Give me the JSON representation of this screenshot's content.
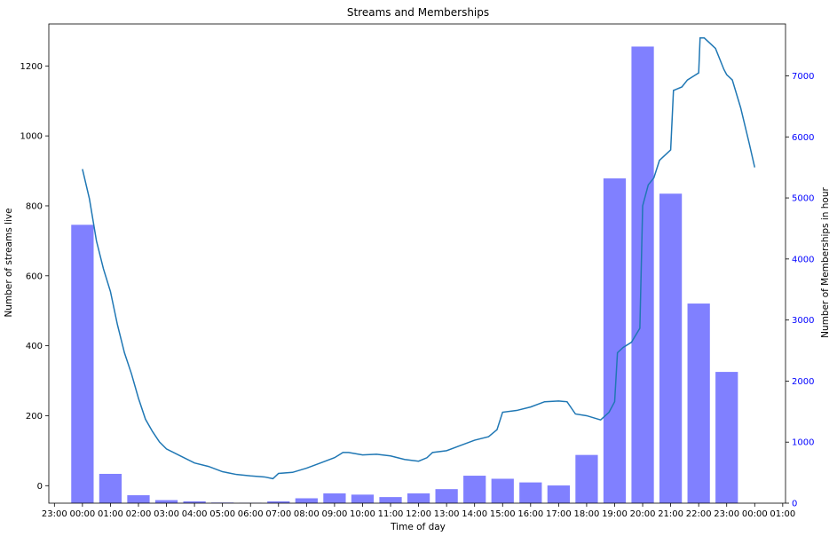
{
  "chart_data": {
    "type": "bar+line",
    "title": "Streams and Memberships",
    "xlabel": "Time of day",
    "ylabel_left": "Number of streams live",
    "ylabel_right": "Number of Memberships in hour",
    "x_tick_labels": [
      "23:00",
      "00:00",
      "01:00",
      "02:00",
      "03:00",
      "04:00",
      "05:00",
      "06:00",
      "07:00",
      "08:00",
      "09:00",
      "10:00",
      "11:00",
      "12:00",
      "13:00",
      "14:00",
      "15:00",
      "16:00",
      "17:00",
      "18:00",
      "19:00",
      "20:00",
      "21:00",
      "22:00",
      "23:00",
      "00:00",
      "01:00"
    ],
    "x_range_hours": [
      -1.2,
      25.1
    ],
    "y_left": {
      "range": [
        -50,
        1320
      ],
      "ticks": [
        0,
        200,
        400,
        600,
        800,
        1000,
        1200
      ]
    },
    "y_right": {
      "range": [
        0,
        7850
      ],
      "ticks": [
        0,
        1000,
        2000,
        3000,
        4000,
        5000,
        6000,
        7000
      ]
    },
    "grid": false,
    "colors": {
      "bars": "#8080ff",
      "line": "#1f77b4",
      "right_axis": "#0000ff"
    },
    "bars": {
      "name": "Memberships in hour",
      "x_hours": [
        0,
        1,
        2,
        3,
        4,
        5,
        6,
        7,
        8,
        9,
        10,
        11,
        12,
        13,
        14,
        15,
        16,
        17,
        18,
        19,
        20,
        21,
        22,
        23
      ],
      "values": [
        4560,
        480,
        130,
        50,
        30,
        10,
        5,
        30,
        80,
        160,
        140,
        100,
        160,
        230,
        450,
        400,
        340,
        290,
        790,
        5320,
        7480,
        5070,
        3270,
        2150
      ]
    },
    "line": {
      "name": "Streams live",
      "points": [
        [
          0,
          905
        ],
        [
          0.25,
          820
        ],
        [
          0.5,
          700
        ],
        [
          0.75,
          620
        ],
        [
          1,
          555
        ],
        [
          1.25,
          460
        ],
        [
          1.5,
          380
        ],
        [
          1.75,
          320
        ],
        [
          2,
          250
        ],
        [
          2.25,
          190
        ],
        [
          2.5,
          155
        ],
        [
          2.75,
          125
        ],
        [
          3,
          105
        ],
        [
          3.5,
          85
        ],
        [
          4,
          65
        ],
        [
          4.5,
          55
        ],
        [
          5,
          40
        ],
        [
          5.5,
          32
        ],
        [
          6,
          28
        ],
        [
          6.5,
          25
        ],
        [
          6.8,
          20
        ],
        [
          7,
          35
        ],
        [
          7.5,
          38
        ],
        [
          8,
          50
        ],
        [
          8.5,
          65
        ],
        [
          9,
          80
        ],
        [
          9.3,
          95
        ],
        [
          9.5,
          95
        ],
        [
          10,
          88
        ],
        [
          10.5,
          90
        ],
        [
          11,
          85
        ],
        [
          11.5,
          75
        ],
        [
          12,
          70
        ],
        [
          12.3,
          80
        ],
        [
          12.5,
          95
        ],
        [
          13,
          100
        ],
        [
          13.5,
          115
        ],
        [
          14,
          130
        ],
        [
          14.5,
          140
        ],
        [
          14.8,
          160
        ],
        [
          15,
          210
        ],
        [
          15.5,
          215
        ],
        [
          16,
          225
        ],
        [
          16.5,
          240
        ],
        [
          17,
          242
        ],
        [
          17.3,
          240
        ],
        [
          17.6,
          205
        ],
        [
          18,
          200
        ],
        [
          18.5,
          188
        ],
        [
          18.8,
          210
        ],
        [
          19,
          240
        ],
        [
          19.1,
          380
        ],
        [
          19.3,
          395
        ],
        [
          19.6,
          410
        ],
        [
          19.9,
          450
        ],
        [
          20,
          800
        ],
        [
          20.2,
          860
        ],
        [
          20.4,
          880
        ],
        [
          20.6,
          930
        ],
        [
          21,
          960
        ],
        [
          21.1,
          1130
        ],
        [
          21.4,
          1140
        ],
        [
          21.6,
          1160
        ],
        [
          21.8,
          1170
        ],
        [
          22,
          1180
        ],
        [
          22.05,
          1280
        ],
        [
          22.2,
          1280
        ],
        [
          22.6,
          1250
        ],
        [
          22.9,
          1190
        ],
        [
          23,
          1175
        ],
        [
          23.2,
          1160
        ],
        [
          23.5,
          1080
        ],
        [
          23.8,
          980
        ],
        [
          24,
          910
        ]
      ]
    }
  }
}
